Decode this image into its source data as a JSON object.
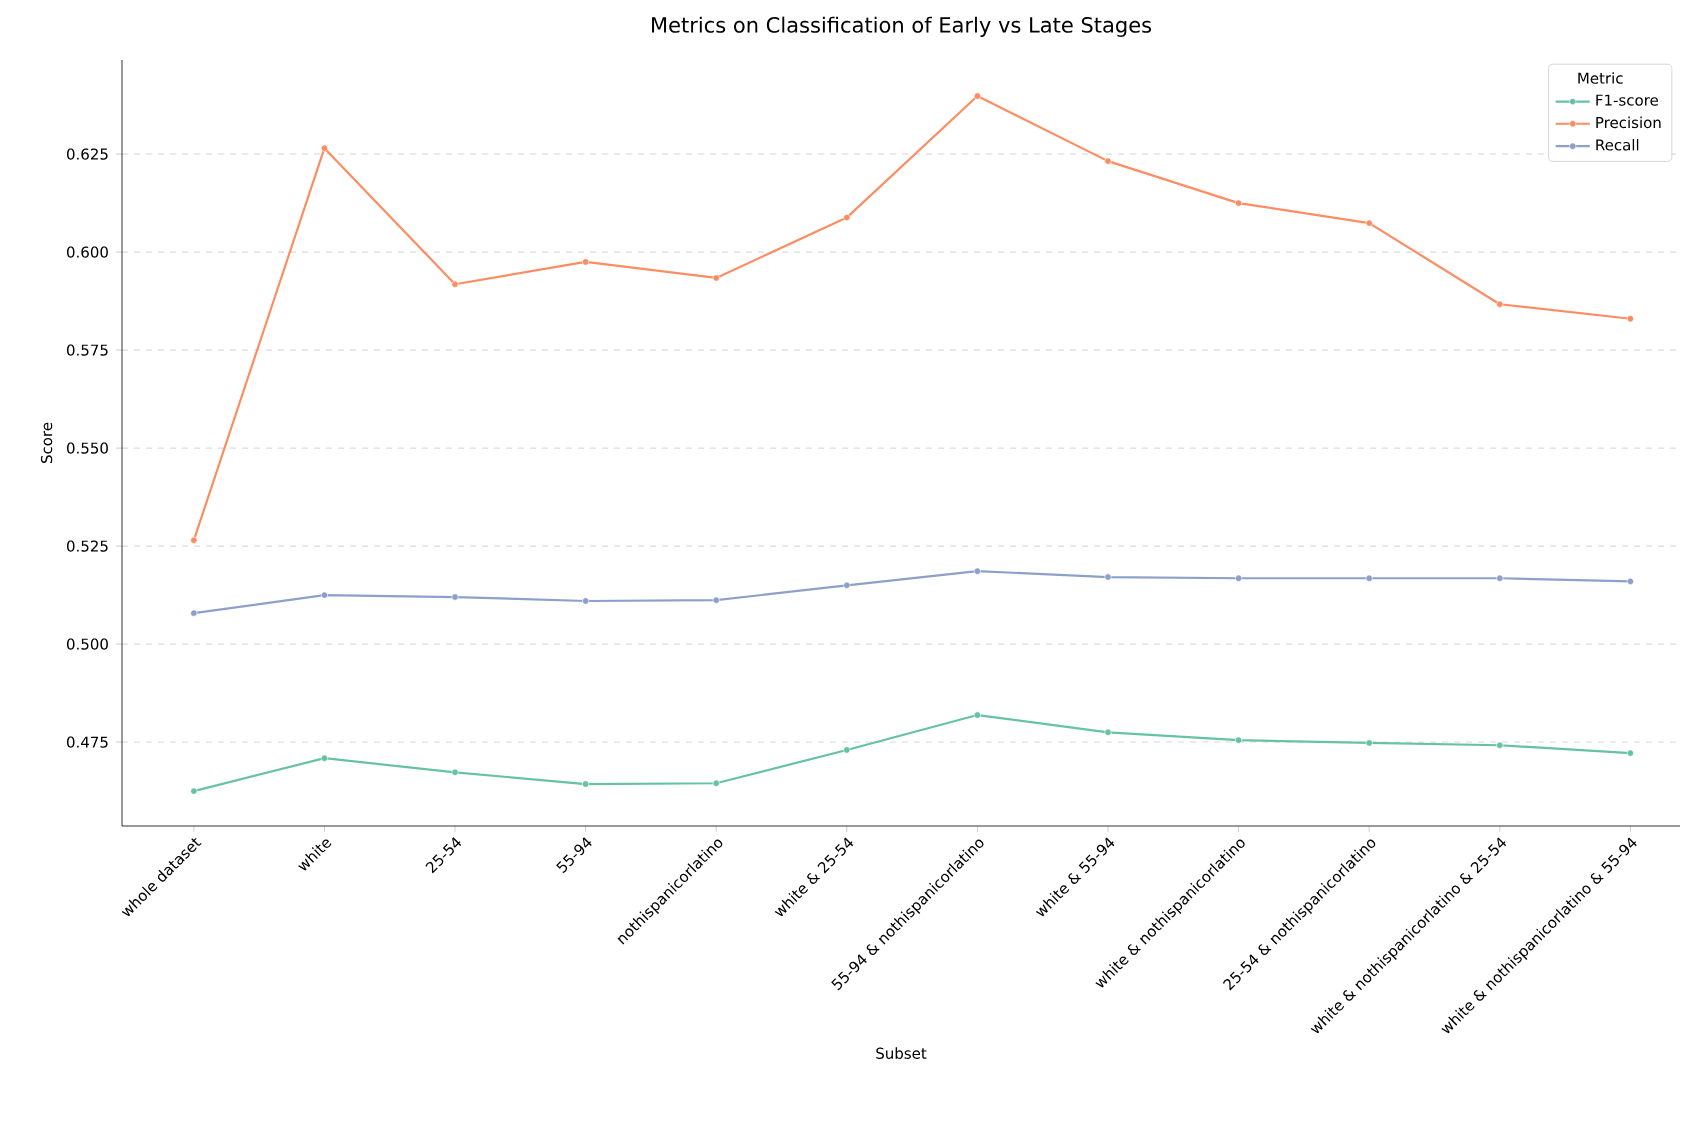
{
  "chart_data": {
    "type": "line",
    "title": "Metrics on Classification of Early vs Late Stages",
    "xlabel": "Subset",
    "ylabel": "Score",
    "legend_title": "Metric",
    "categories": [
      "whole dataset",
      "white",
      "25-54",
      "55-94",
      "nothispanicorlatino",
      "white & 25-54",
      "55-94 & nothispanicorlatino",
      "white & 55-94",
      "white & nothispanicorlatino",
      "25-54 & nothispanicorlatino",
      "white & nothispanicorlatino & 25-54",
      "white & nothispanicorlatino & 55-94"
    ],
    "series": [
      {
        "name": "F1-score",
        "color": "#66c2a5",
        "values": [
          0.4625,
          0.4709,
          0.4673,
          0.4643,
          0.4645,
          0.473,
          0.4819,
          0.4775,
          0.4755,
          0.4748,
          0.4742,
          0.4722
        ]
      },
      {
        "name": "Precision",
        "color": "#fc8d62",
        "values": [
          0.5265,
          0.6265,
          0.5918,
          0.5975,
          0.5934,
          0.6088,
          0.6398,
          0.6232,
          0.6125,
          0.6074,
          0.5867,
          0.583
        ]
      },
      {
        "name": "Recall",
        "color": "#8da0cb",
        "values": [
          0.5079,
          0.5125,
          0.512,
          0.511,
          0.5112,
          0.515,
          0.5186,
          0.5171,
          0.5168,
          0.5168,
          0.5168,
          0.516
        ]
      }
    ],
    "ylim": [
      0.4536,
      0.649
    ],
    "yticks": [
      {
        "value": 0.475,
        "label": "0.475"
      },
      {
        "value": 0.5,
        "label": "0.500"
      },
      {
        "value": 0.525,
        "label": "0.525"
      },
      {
        "value": 0.55,
        "label": "0.550"
      },
      {
        "value": 0.575,
        "label": "0.575"
      },
      {
        "value": 0.6,
        "label": "0.600"
      },
      {
        "value": 0.625,
        "label": "0.625"
      }
    ],
    "grid": "y",
    "legend": "top right",
    "marker": "circle",
    "line_style": "solid"
  }
}
